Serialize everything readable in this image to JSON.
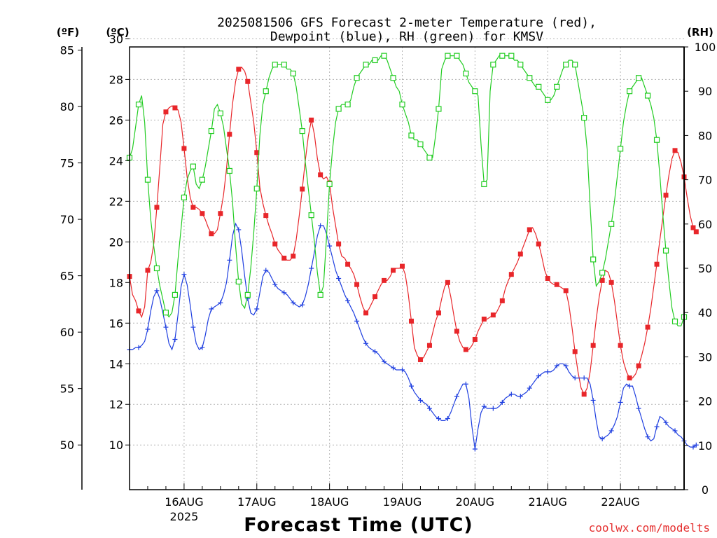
{
  "chart_data": {
    "type": "line",
    "title_line1": "2025081506 GFS Forecast 2-meter Temperature (red),",
    "title_line2": "Dewpoint (blue), RH (green) for KMSV",
    "xlabel": "Forecast Time (UTC)",
    "watermark": "coolwx.com/modelts",
    "left_unit_f": "(ºF)",
    "left_unit_c": "(ºC)",
    "right_unit": "(RH)",
    "x_range_hours": [
      0,
      183
    ],
    "ylim_c": [
      7.8,
      29.6
    ],
    "ylim_f": [
      46.04,
      85.28
    ],
    "ylim_rh": [
      0,
      100
    ],
    "grid": true,
    "x_ticks": [
      {
        "label": "16AUG",
        "hour": 18
      },
      {
        "label": "17AUG",
        "hour": 42
      },
      {
        "label": "18AUG",
        "hour": 66
      },
      {
        "label": "19AUG",
        "hour": 90
      },
      {
        "label": "20AUG",
        "hour": 114
      },
      {
        "label": "21AUG",
        "hour": 138
      },
      {
        "label": "22AUG",
        "hour": 162
      }
    ],
    "year_label": "2025",
    "c_ticks": [
      "10",
      "12",
      "14",
      "16",
      "18",
      "20",
      "22",
      "24",
      "26",
      "28",
      "30"
    ],
    "f_ticks": [
      "50",
      "55",
      "60",
      "65",
      "70",
      "75",
      "80",
      "85"
    ],
    "rh_ticks": [
      "0",
      "10",
      "20",
      "30",
      "40",
      "50",
      "60",
      "70",
      "80",
      "90",
      "100"
    ],
    "colors": {
      "temperature": "#e8262a",
      "dewpoint": "#1f3fe0",
      "rh": "#22cc22",
      "watermark": "#e53030",
      "text": "#000000",
      "grid": "#b4b4b4"
    },
    "series": [
      {
        "name": "Temperature (red)",
        "axis": "C",
        "step_hours": 1,
        "values": [
          18.3,
          17.4,
          17.1,
          16.6,
          16.3,
          16.8,
          18.6,
          19.0,
          19.9,
          21.7,
          23.7,
          25.8,
          26.4,
          26.6,
          26.7,
          26.6,
          26.5,
          25.9,
          24.6,
          23.2,
          22.2,
          21.7,
          21.7,
          21.6,
          21.4,
          21.1,
          20.7,
          20.4,
          20.4,
          20.6,
          21.4,
          22.3,
          23.6,
          25.3,
          26.8,
          27.9,
          28.5,
          28.6,
          28.4,
          27.9,
          26.9,
          25.9,
          24.4,
          22.7,
          21.9,
          21.3,
          20.8,
          20.4,
          19.9,
          19.6,
          19.4,
          19.2,
          19.1,
          19.1,
          19.3,
          20.1,
          21.3,
          22.6,
          24.0,
          25.2,
          26.0,
          25.3,
          24.1,
          23.3,
          23.1,
          23.2,
          22.9,
          21.7,
          20.8,
          19.9,
          19.3,
          19.2,
          18.9,
          18.7,
          18.4,
          17.9,
          17.3,
          16.8,
          16.5,
          16.7,
          17.0,
          17.3,
          17.6,
          17.9,
          18.1,
          18.1,
          18.3,
          18.6,
          18.7,
          18.7,
          18.8,
          18.4,
          17.4,
          16.1,
          14.8,
          14.4,
          14.2,
          14.3,
          14.6,
          14.9,
          15.5,
          16.1,
          16.5,
          17.2,
          17.8,
          18.0,
          17.3,
          16.4,
          15.6,
          15.1,
          14.8,
          14.7,
          14.7,
          14.9,
          15.2,
          15.6,
          15.9,
          16.2,
          16.2,
          16.3,
          16.4,
          16.5,
          16.8,
          17.1,
          17.7,
          18.1,
          18.4,
          18.7,
          19.0,
          19.4,
          19.8,
          20.2,
          20.6,
          20.7,
          20.4,
          19.9,
          19.3,
          18.6,
          18.2,
          18.0,
          17.9,
          17.9,
          17.8,
          17.7,
          17.6,
          16.9,
          15.8,
          14.6,
          13.6,
          12.8,
          12.5,
          12.8,
          13.6,
          14.9,
          16.2,
          17.3,
          18.1,
          18.6,
          18.5,
          18.0,
          17.1,
          16.0,
          14.9,
          14.1,
          13.6,
          13.3,
          13.3,
          13.5,
          13.9,
          14.4,
          15.0,
          15.8,
          16.7,
          17.8,
          18.9,
          20.1,
          21.2,
          22.3,
          23.3,
          24.1,
          24.5,
          24.4,
          23.9,
          23.2,
          22.2,
          21.3,
          20.7,
          20.5
        ]
      },
      {
        "name": "Dewpoint (blue)",
        "axis": "C",
        "step_hours": 1,
        "values": [
          14.7,
          14.7,
          14.8,
          14.8,
          14.9,
          15.1,
          15.7,
          16.6,
          17.3,
          17.6,
          17.2,
          16.5,
          15.8,
          15.0,
          14.7,
          15.2,
          16.4,
          17.8,
          18.4,
          17.9,
          16.9,
          15.8,
          15.0,
          14.7,
          14.8,
          15.4,
          16.2,
          16.7,
          16.8,
          16.9,
          17.0,
          17.4,
          18.0,
          19.1,
          20.3,
          20.9,
          20.6,
          19.6,
          18.3,
          17.2,
          16.5,
          16.4,
          16.7,
          17.5,
          18.3,
          18.6,
          18.5,
          18.2,
          17.9,
          17.7,
          17.6,
          17.5,
          17.4,
          17.2,
          17.0,
          16.9,
          16.8,
          16.9,
          17.3,
          17.9,
          18.7,
          19.5,
          20.3,
          20.8,
          20.8,
          20.4,
          19.8,
          19.2,
          18.6,
          18.2,
          17.8,
          17.4,
          17.1,
          16.8,
          16.5,
          16.1,
          15.7,
          15.3,
          15.0,
          14.8,
          14.7,
          14.6,
          14.5,
          14.3,
          14.1,
          14.0,
          13.9,
          13.8,
          13.7,
          13.7,
          13.7,
          13.6,
          13.3,
          12.9,
          12.6,
          12.4,
          12.2,
          12.1,
          12.0,
          11.8,
          11.6,
          11.4,
          11.3,
          11.2,
          11.2,
          11.3,
          11.6,
          12.0,
          12.4,
          12.7,
          13.0,
          13.0,
          12.3,
          10.9,
          9.8,
          10.8,
          11.6,
          11.9,
          11.8,
          11.8,
          11.8,
          11.8,
          11.9,
          12.1,
          12.3,
          12.4,
          12.5,
          12.5,
          12.4,
          12.4,
          12.5,
          12.6,
          12.8,
          13.0,
          13.2,
          13.4,
          13.5,
          13.6,
          13.6,
          13.6,
          13.7,
          13.9,
          14.0,
          14.0,
          13.9,
          13.6,
          13.4,
          13.3,
          13.3,
          13.3,
          13.3,
          13.3,
          13.0,
          12.2,
          11.2,
          10.4,
          10.3,
          10.4,
          10.5,
          10.7,
          11.0,
          11.4,
          12.1,
          12.8,
          13.0,
          12.9,
          12.9,
          12.4,
          11.8,
          11.3,
          10.8,
          10.4,
          10.2,
          10.3,
          10.9,
          11.4,
          11.3,
          11.1,
          10.9,
          10.8,
          10.7,
          10.5,
          10.4,
          10.2,
          10.0,
          9.9,
          9.9,
          10.0
        ]
      },
      {
        "name": "RH (green)",
        "axis": "RH",
        "step_hours": 1,
        "values": [
          75,
          77,
          82,
          87,
          89,
          83,
          70,
          61,
          55,
          50,
          46,
          43,
          40,
          39,
          40,
          44,
          52,
          59,
          66,
          70,
          72,
          73,
          69,
          68,
          70,
          73,
          77,
          81,
          86,
          87,
          85,
          82,
          77,
          72,
          65,
          55,
          47,
          42,
          41,
          44,
          50,
          58,
          68,
          80,
          87,
          90,
          93,
          95,
          96,
          96,
          96,
          96,
          95,
          95,
          94,
          91,
          86,
          81,
          74,
          68,
          62,
          56,
          49,
          44,
          46,
          57,
          69,
          77,
          83,
          86,
          87,
          87,
          87,
          88,
          91,
          93,
          94,
          95,
          96,
          96,
          97,
          97,
          97,
          98,
          98,
          97,
          95,
          93,
          91,
          90,
          87,
          85,
          83,
          80,
          79,
          79,
          78,
          77,
          76,
          75,
          75,
          80,
          86,
          95,
          97,
          98,
          98,
          98,
          98,
          97,
          96,
          94,
          92,
          91,
          90,
          89,
          78,
          69,
          70,
          90,
          96,
          97,
          98,
          98,
          98,
          98,
          98,
          97,
          97,
          96,
          95,
          94,
          93,
          92,
          91,
          91,
          90,
          89,
          88,
          88,
          89,
          91,
          93,
          95,
          96,
          97,
          97,
          96,
          92,
          88,
          84,
          77,
          64,
          52,
          46,
          47,
          49,
          52,
          56,
          60,
          65,
          71,
          77,
          83,
          87,
          90,
          91,
          92,
          93,
          93,
          91,
          89,
          87,
          84,
          79,
          71,
          62,
          54,
          47,
          41,
          38,
          37,
          37,
          39
        ]
      }
    ]
  }
}
